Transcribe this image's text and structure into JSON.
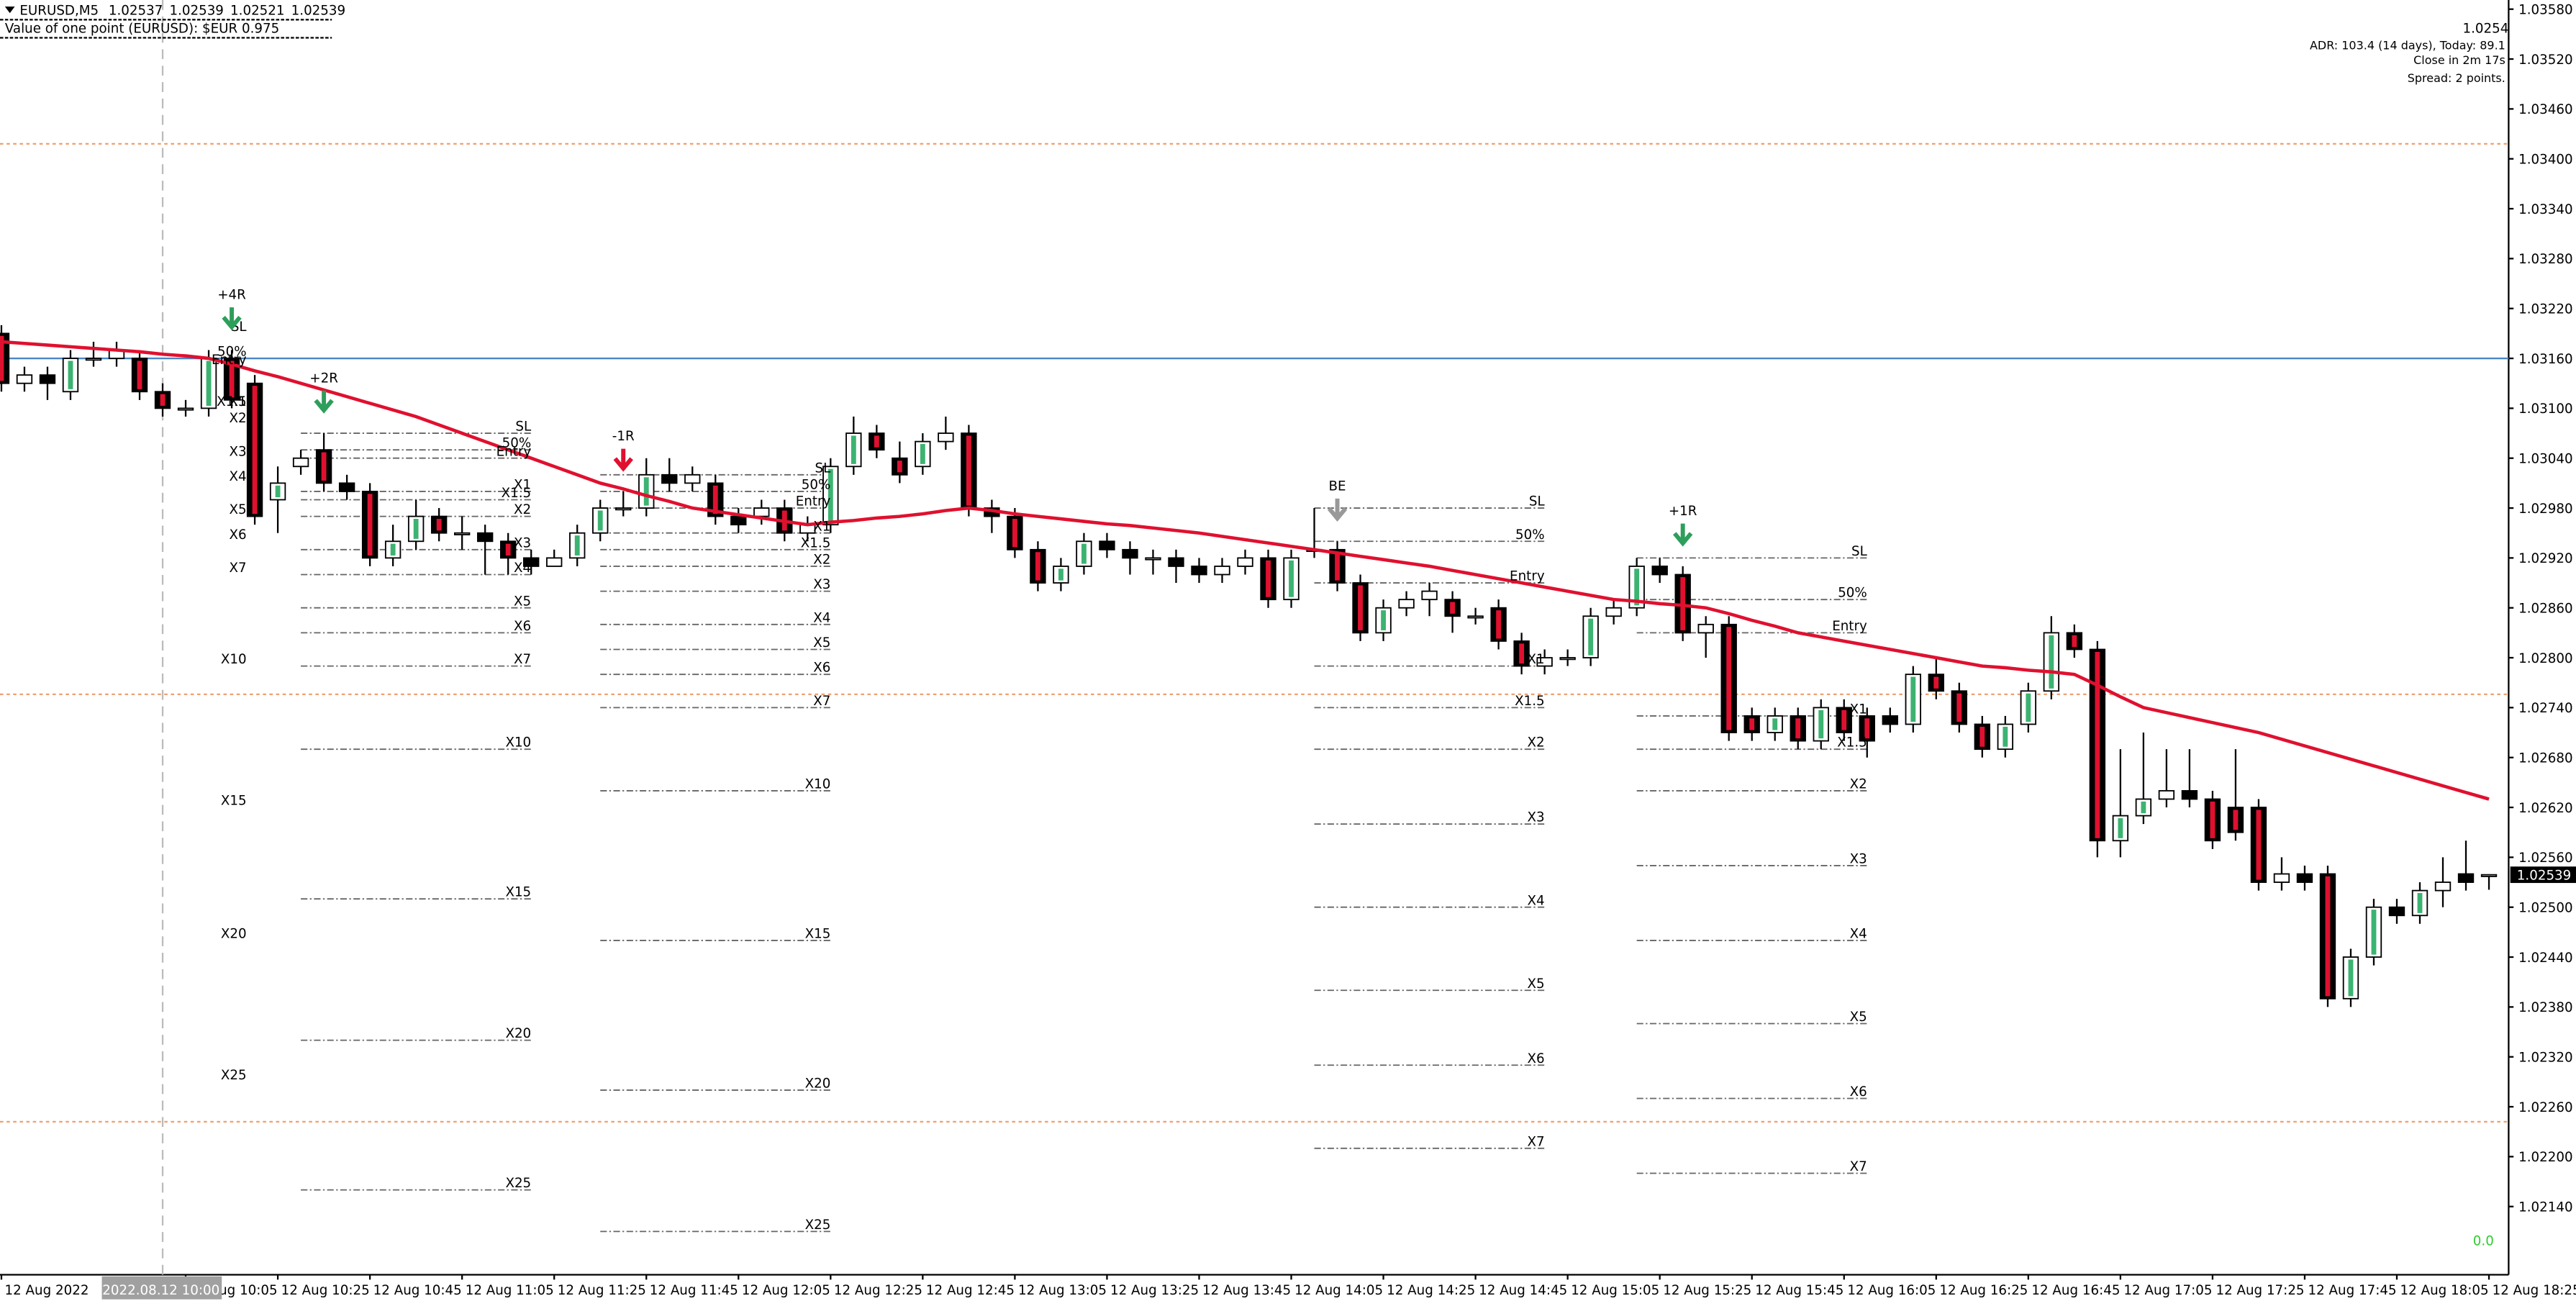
{
  "header": {
    "symbol": "EURUSD,M5",
    "point_value": "Value of one point (EURUSD):  $EUR 0.975"
  },
  "overlay": {
    "price": 1.0254,
    "adr": "ADR: 103.4 (14 days), Today: 89.1",
    "close_in": "Close in 2m 17s",
    "spread": "Spread: 2 points.",
    "counter": "0.0",
    "crosshair_label": "2022.08.12 10:00"
  },
  "chart_data": {
    "type": "candlestick",
    "categories": [
      "12 Aug 2022",
      null,
      null,
      null,
      null,
      null,
      null,
      null,
      "12 Aug 10:05",
      null,
      null,
      null,
      "12 Aug 10:25",
      null,
      null,
      null,
      "12 Aug 10:45",
      null,
      null,
      null,
      "12 Aug 11:05",
      null,
      null,
      null,
      "12 Aug 11:25",
      null,
      null,
      null,
      "12 Aug 11:45",
      null,
      null,
      null,
      "12 Aug 12:05",
      null,
      null,
      null,
      "12 Aug 12:25",
      null,
      null,
      null,
      "12 Aug 12:45",
      null,
      null,
      null,
      "12 Aug 13:05",
      null,
      null,
      null,
      "12 Aug 13:25",
      null,
      null,
      null,
      "12 Aug 13:45",
      null,
      null,
      null,
      "12 Aug 14:05",
      null,
      null,
      null,
      "12 Aug 14:25",
      null,
      null,
      null,
      "12 Aug 14:45",
      null,
      null,
      null,
      "12 Aug 15:05",
      null,
      null,
      null,
      "12 Aug 15:25",
      null,
      null,
      null,
      "12 Aug 15:45",
      null,
      null,
      null,
      "12 Aug 16:05",
      null,
      null,
      null,
      "12 Aug 16:25",
      null,
      null,
      null,
      "12 Aug 16:45",
      null,
      null,
      null,
      "12 Aug 17:05",
      null,
      null,
      null,
      "12 Aug 17:25",
      null,
      null,
      null,
      "12 Aug 17:45",
      null,
      null,
      null,
      "12 Aug 18:05",
      null,
      null,
      null,
      "12 Aug 18:25"
    ],
    "open": [
      1.0319,
      1.0313,
      1.0314,
      1.0312,
      1.0316,
      1.0316,
      1.0316,
      1.0312,
      1.031,
      1.031,
      1.0316,
      1.0313,
      1.0299,
      1.0303,
      1.0305,
      1.0301,
      1.03,
      1.0292,
      1.0294,
      1.0297,
      1.0295,
      1.0295,
      1.0294,
      1.0292,
      1.0291,
      1.0292,
      1.0295,
      1.0298,
      1.0298,
      1.0302,
      1.0301,
      1.0301,
      1.0297,
      1.0297,
      1.0298,
      1.0295,
      1.0296,
      1.0303,
      1.0307,
      1.0304,
      1.0303,
      1.0306,
      1.0307,
      1.0298,
      1.0297,
      1.0293,
      1.0289,
      1.0291,
      1.0294,
      1.0293,
      1.0292,
      1.0292,
      1.0291,
      1.029,
      1.0291,
      1.0292,
      1.0287,
      1.0293,
      1.0293,
      1.0289,
      1.0283,
      1.0286,
      1.0287,
      1.0287,
      1.0285,
      1.0286,
      1.0282,
      1.0279,
      1.028,
      1.028,
      1.0285,
      1.0286,
      1.0291,
      1.029,
      1.0283,
      1.0284,
      1.0273,
      1.0271,
      1.0273,
      1.027,
      1.0274,
      1.0273,
      1.0273,
      1.0272,
      1.0278,
      1.0276,
      1.0272,
      1.0269,
      1.0272,
      1.0276,
      1.0283,
      1.0281,
      1.0258,
      1.0261,
      1.0263,
      1.0264,
      1.0263,
      1.0262,
      1.0262,
      1.0253,
      1.0254,
      1.0254,
      1.0239,
      1.0244,
      1.025,
      1.0249,
      1.0252,
      1.0254,
      1.02537
    ],
    "high": [
      1.032,
      1.0315,
      1.0315,
      1.0317,
      1.0318,
      1.0318,
      1.0317,
      1.0313,
      1.0311,
      1.0317,
      1.0317,
      1.0314,
      1.0303,
      1.0305,
      1.0307,
      1.0302,
      1.0301,
      1.0296,
      1.0299,
      1.0298,
      1.0297,
      1.0296,
      1.0295,
      1.0293,
      1.0293,
      1.0296,
      1.0299,
      1.03,
      1.0304,
      1.0304,
      1.0303,
      1.0302,
      1.0298,
      1.0299,
      1.0299,
      1.0297,
      1.0304,
      1.0309,
      1.0308,
      1.0306,
      1.0307,
      1.0309,
      1.0308,
      1.0299,
      1.0298,
      1.0294,
      1.0292,
      1.0295,
      1.0295,
      1.0294,
      1.0293,
      1.0293,
      1.0292,
      1.0292,
      1.0293,
      1.0293,
      1.0293,
      1.0298,
      1.0294,
      1.029,
      1.0287,
      1.0288,
      1.0289,
      1.0288,
      1.0286,
      1.0287,
      1.0283,
      1.0281,
      1.0281,
      1.0286,
      1.0287,
      1.0292,
      1.0292,
      1.0291,
      1.0285,
      1.0285,
      1.0274,
      1.0274,
      1.0274,
      1.0275,
      1.0275,
      1.0274,
      1.0274,
      1.0279,
      1.028,
      1.0277,
      1.0273,
      1.0273,
      1.0277,
      1.0285,
      1.0284,
      1.0282,
      1.0269,
      1.0271,
      1.0269,
      1.0269,
      1.0264,
      1.0269,
      1.0263,
      1.0256,
      1.0255,
      1.0255,
      1.0245,
      1.0251,
      1.0251,
      1.0253,
      1.0256,
      1.0258,
      1.02539
    ],
    "low": [
      1.0312,
      1.0312,
      1.0311,
      1.0311,
      1.0315,
      1.0315,
      1.0311,
      1.0309,
      1.0309,
      1.0309,
      1.031,
      1.0296,
      1.0295,
      1.0302,
      1.03,
      1.0299,
      1.0291,
      1.0291,
      1.0293,
      1.0294,
      1.0293,
      1.029,
      1.029,
      1.029,
      1.0291,
      1.0291,
      1.0294,
      1.0297,
      1.0297,
      1.03,
      1.03,
      1.0296,
      1.0295,
      1.0296,
      1.0294,
      1.0294,
      1.0295,
      1.0302,
      1.0304,
      1.0301,
      1.0302,
      1.0305,
      1.0297,
      1.0295,
      1.0292,
      1.0288,
      1.0288,
      1.029,
      1.0292,
      1.029,
      1.029,
      1.0289,
      1.0289,
      1.0289,
      1.029,
      1.0286,
      1.0286,
      1.0292,
      1.0288,
      1.0282,
      1.0282,
      1.0285,
      1.0285,
      1.0283,
      1.0284,
      1.0281,
      1.0278,
      1.0278,
      1.0279,
      1.0279,
      1.0284,
      1.0285,
      1.0289,
      1.0282,
      1.028,
      1.027,
      1.027,
      1.027,
      1.0269,
      1.0269,
      1.027,
      1.0268,
      1.0271,
      1.0271,
      1.0275,
      1.0271,
      1.0268,
      1.0268,
      1.0271,
      1.0275,
      1.028,
      1.0256,
      1.0256,
      1.026,
      1.0262,
      1.0262,
      1.0257,
      1.0258,
      1.0252,
      1.0252,
      1.0252,
      1.0238,
      1.0238,
      1.0243,
      1.0248,
      1.0248,
      1.025,
      1.0252,
      1.02521
    ],
    "close": [
      1.0313,
      1.0314,
      1.0313,
      1.0316,
      1.0316,
      1.0317,
      1.0312,
      1.031,
      1.031,
      1.0316,
      1.0311,
      1.0297,
      1.0301,
      1.0304,
      1.0301,
      1.03,
      1.0292,
      1.0294,
      1.0297,
      1.0295,
      1.0295,
      1.0294,
      1.0292,
      1.0291,
      1.0292,
      1.0295,
      1.0298,
      1.0298,
      1.0302,
      1.0301,
      1.0302,
      1.0297,
      1.0296,
      1.0298,
      1.0295,
      1.0296,
      1.0303,
      1.0307,
      1.0305,
      1.0302,
      1.0306,
      1.0307,
      1.0298,
      1.0297,
      1.0293,
      1.0289,
      1.0291,
      1.0294,
      1.0293,
      1.0292,
      1.0292,
      1.0291,
      1.029,
      1.0291,
      1.0292,
      1.0287,
      1.0292,
      1.0293,
      1.0289,
      1.0283,
      1.0286,
      1.0287,
      1.0288,
      1.0285,
      1.0285,
      1.0282,
      1.0279,
      1.028,
      1.028,
      1.0285,
      1.0286,
      1.0291,
      1.029,
      1.0283,
      1.0284,
      1.0271,
      1.0271,
      1.0273,
      1.027,
      1.0274,
      1.0271,
      1.027,
      1.0272,
      1.0278,
      1.0276,
      1.0272,
      1.0269,
      1.0272,
      1.0276,
      1.0283,
      1.0281,
      1.0258,
      1.0261,
      1.0263,
      1.0264,
      1.0263,
      1.0258,
      1.0259,
      1.0253,
      1.0254,
      1.0253,
      1.0239,
      1.0244,
      1.025,
      1.0249,
      1.0252,
      1.0253,
      1.0253,
      1.02539
    ],
    "ma": {
      "color": "#e0102f",
      "values": [
        1.0318,
        1.03178,
        1.03176,
        1.03174,
        1.03172,
        1.0317,
        1.03168,
        1.03165,
        1.03163,
        1.0316,
        1.03153,
        1.03145,
        1.03138,
        1.0313,
        1.03122,
        1.03114,
        1.03106,
        1.03098,
        1.0309,
        1.0308,
        1.0307,
        1.0306,
        1.0305,
        1.0304,
        1.0303,
        1.0302,
        1.0301,
        1.03003,
        1.02995,
        1.02988,
        1.0298,
        1.02976,
        1.02972,
        1.02968,
        1.02964,
        1.0296,
        1.02963,
        1.02965,
        1.02968,
        1.0297,
        1.02973,
        1.02977,
        1.0298,
        1.02977,
        1.02973,
        1.0297,
        1.02967,
        1.02964,
        1.02961,
        1.02959,
        1.02956,
        1.02953,
        1.0295,
        1.02946,
        1.02942,
        1.02938,
        1.02934,
        1.0293,
        1.02926,
        1.02922,
        1.02918,
        1.02914,
        1.0291,
        1.02905,
        1.029,
        1.02895,
        1.0289,
        1.02885,
        1.0288,
        1.02875,
        1.0287,
        1.02868,
        1.02865,
        1.02863,
        1.0286,
        1.02853,
        1.02845,
        1.02838,
        1.0283,
        1.02825,
        1.0282,
        1.02815,
        1.0281,
        1.02805,
        1.028,
        1.02795,
        1.0279,
        1.02788,
        1.02785,
        1.02783,
        1.0278,
        1.02767,
        1.02753,
        1.0274,
        1.02734,
        1.02728,
        1.02722,
        1.02716,
        1.0271,
        1.02702,
        1.02694,
        1.02686,
        1.02678,
        1.0267,
        1.02662,
        1.02654,
        1.02646,
        1.02638,
        1.0263
      ]
    },
    "ylim": [
      1.02058,
      1.03591
    ],
    "yticks": [
      {
        "value": 1.0358,
        "label": "1.03580"
      },
      {
        "value": 1.0352,
        "label": "1.03520"
      },
      {
        "value": 1.0346,
        "label": "1.03460"
      },
      {
        "value": 1.034,
        "label": "1.03400"
      },
      {
        "value": 1.0334,
        "label": "1.03340"
      },
      {
        "value": 1.0328,
        "label": "1.03280"
      },
      {
        "value": 1.0322,
        "label": "1.03220"
      },
      {
        "value": 1.0316,
        "label": "1.03160"
      },
      {
        "value": 1.031,
        "label": "1.03100"
      },
      {
        "value": 1.0304,
        "label": "1.03040"
      },
      {
        "value": 1.0298,
        "label": "1.02980"
      },
      {
        "value": 1.0292,
        "label": "1.02920"
      },
      {
        "value": 1.0286,
        "label": "1.02860"
      },
      {
        "value": 1.028,
        "label": "1.02800"
      },
      {
        "value": 1.0274,
        "label": "1.02740"
      },
      {
        "value": 1.0268,
        "label": "1.02680"
      },
      {
        "value": 1.0262,
        "label": "1.02620"
      },
      {
        "value": 1.0256,
        "label": "1.02560"
      },
      {
        "value": 1.025,
        "label": "1.02500"
      },
      {
        "value": 1.0244,
        "label": "1.02440"
      },
      {
        "value": 1.0238,
        "label": "1.02380"
      },
      {
        "value": 1.0232,
        "label": "1.02320"
      },
      {
        "value": 1.0226,
        "label": "1.02260"
      },
      {
        "value": 1.022,
        "label": "1.02200"
      },
      {
        "value": 1.0214,
        "label": "1.02140"
      }
    ],
    "hlines": [
      {
        "value": 1.0316,
        "color": "#4a86c8",
        "dash": false
      },
      {
        "value": 1.03418,
        "color": "#f0a070",
        "dash": true
      },
      {
        "value": 1.02756,
        "color": "#f0a070",
        "dash": true
      },
      {
        "value": 1.02242,
        "color": "#f0a070",
        "dash": true
      }
    ],
    "trades": [
      {
        "label": "+4R",
        "color": "#2e9e5b",
        "candle": 10,
        "start": 10,
        "end": 10,
        "levels": [
          {
            "label": "SL",
            "value": 1.0319
          },
          {
            "label": "50%",
            "value": 1.0316
          },
          {
            "label": "Entry",
            "value": 1.0315
          },
          {
            "label": "X1",
            "value": 1.031
          },
          {
            "label": "X1.5",
            "value": 1.031
          },
          {
            "label": "X2",
            "value": 1.0308
          },
          {
            "label": "X3",
            "value": 1.0304
          },
          {
            "label": "X4",
            "value": 1.0301
          },
          {
            "label": "X5",
            "value": 1.0297
          },
          {
            "label": "X6",
            "value": 1.0294
          },
          {
            "label": "X7",
            "value": 1.029
          },
          {
            "label": "X10",
            "value": 1.0279
          },
          {
            "label": "X15",
            "value": 1.0262
          },
          {
            "label": "X20",
            "value": 1.0246
          },
          {
            "label": "X25",
            "value": 1.0229
          }
        ]
      },
      {
        "label": "+2R",
        "color": "#2e9e5b",
        "candle": 14,
        "start": 13,
        "end": 23,
        "levels": [
          {
            "label": "SL",
            "value": 1.0307
          },
          {
            "label": "50%",
            "value": 1.0305
          },
          {
            "label": "Entry",
            "value": 1.0304
          },
          {
            "label": "X1",
            "value": 1.03
          },
          {
            "label": "X1.5",
            "value": 1.0299
          },
          {
            "label": "X2",
            "value": 1.0297
          },
          {
            "label": "X3",
            "value": 1.0293
          },
          {
            "label": "X4",
            "value": 1.029
          },
          {
            "label": "X5",
            "value": 1.0286
          },
          {
            "label": "X6",
            "value": 1.0283
          },
          {
            "label": "X7",
            "value": 1.0279
          },
          {
            "label": "X10",
            "value": 1.0269
          },
          {
            "label": "X15",
            "value": 1.0251
          },
          {
            "label": "X20",
            "value": 1.0234
          },
          {
            "label": "X25",
            "value": 1.0216
          }
        ]
      },
      {
        "label": "-1R",
        "color": "#e0102f",
        "candle": 27,
        "start": 26,
        "end": 36,
        "levels": [
          {
            "label": "SL",
            "value": 1.0302
          },
          {
            "label": "50%",
            "value": 1.03
          },
          {
            "label": "Entry",
            "value": 1.0298
          },
          {
            "label": "X1",
            "value": 1.0295
          },
          {
            "label": "X1.5",
            "value": 1.0293
          },
          {
            "label": "X2",
            "value": 1.0291
          },
          {
            "label": "X3",
            "value": 1.0288
          },
          {
            "label": "X4",
            "value": 1.0284
          },
          {
            "label": "X5",
            "value": 1.0281
          },
          {
            "label": "X6",
            "value": 1.0278
          },
          {
            "label": "X7",
            "value": 1.0274
          },
          {
            "label": "X10",
            "value": 1.0264
          },
          {
            "label": "X15",
            "value": 1.0246
          },
          {
            "label": "X20",
            "value": 1.0228
          },
          {
            "label": "X25",
            "value": 1.0211
          }
        ]
      },
      {
        "label": "BE",
        "color": "#999999",
        "candle": 58,
        "start": 57,
        "end": 67,
        "levels": [
          {
            "label": "SL",
            "value": 1.0298
          },
          {
            "label": "50%",
            "value": 1.0294
          },
          {
            "label": "Entry",
            "value": 1.0289
          },
          {
            "label": "X1",
            "value": 1.0279
          },
          {
            "label": "X1.5",
            "value": 1.0274
          },
          {
            "label": "X2",
            "value": 1.0269
          },
          {
            "label": "X3",
            "value": 1.026
          },
          {
            "label": "X4",
            "value": 1.025
          },
          {
            "label": "X5",
            "value": 1.024
          },
          {
            "label": "X6",
            "value": 1.0231
          },
          {
            "label": "X7",
            "value": 1.0221
          }
        ]
      },
      {
        "label": "+1R",
        "color": "#2e9e5b",
        "candle": 73,
        "start": 71,
        "end": 81,
        "levels": [
          {
            "label": "SL",
            "value": 1.0292
          },
          {
            "label": "50%",
            "value": 1.0287
          },
          {
            "label": "Entry",
            "value": 1.0283
          },
          {
            "label": "X1",
            "value": 1.0273
          },
          {
            "label": "X1.5",
            "value": 1.0269
          },
          {
            "label": "X2",
            "value": 1.0264
          },
          {
            "label": "X3",
            "value": 1.0255
          },
          {
            "label": "X4",
            "value": 1.0246
          },
          {
            "label": "X5",
            "value": 1.0236
          },
          {
            "label": "X6",
            "value": 1.0227
          },
          {
            "label": "X7",
            "value": 1.0218
          }
        ]
      }
    ]
  }
}
